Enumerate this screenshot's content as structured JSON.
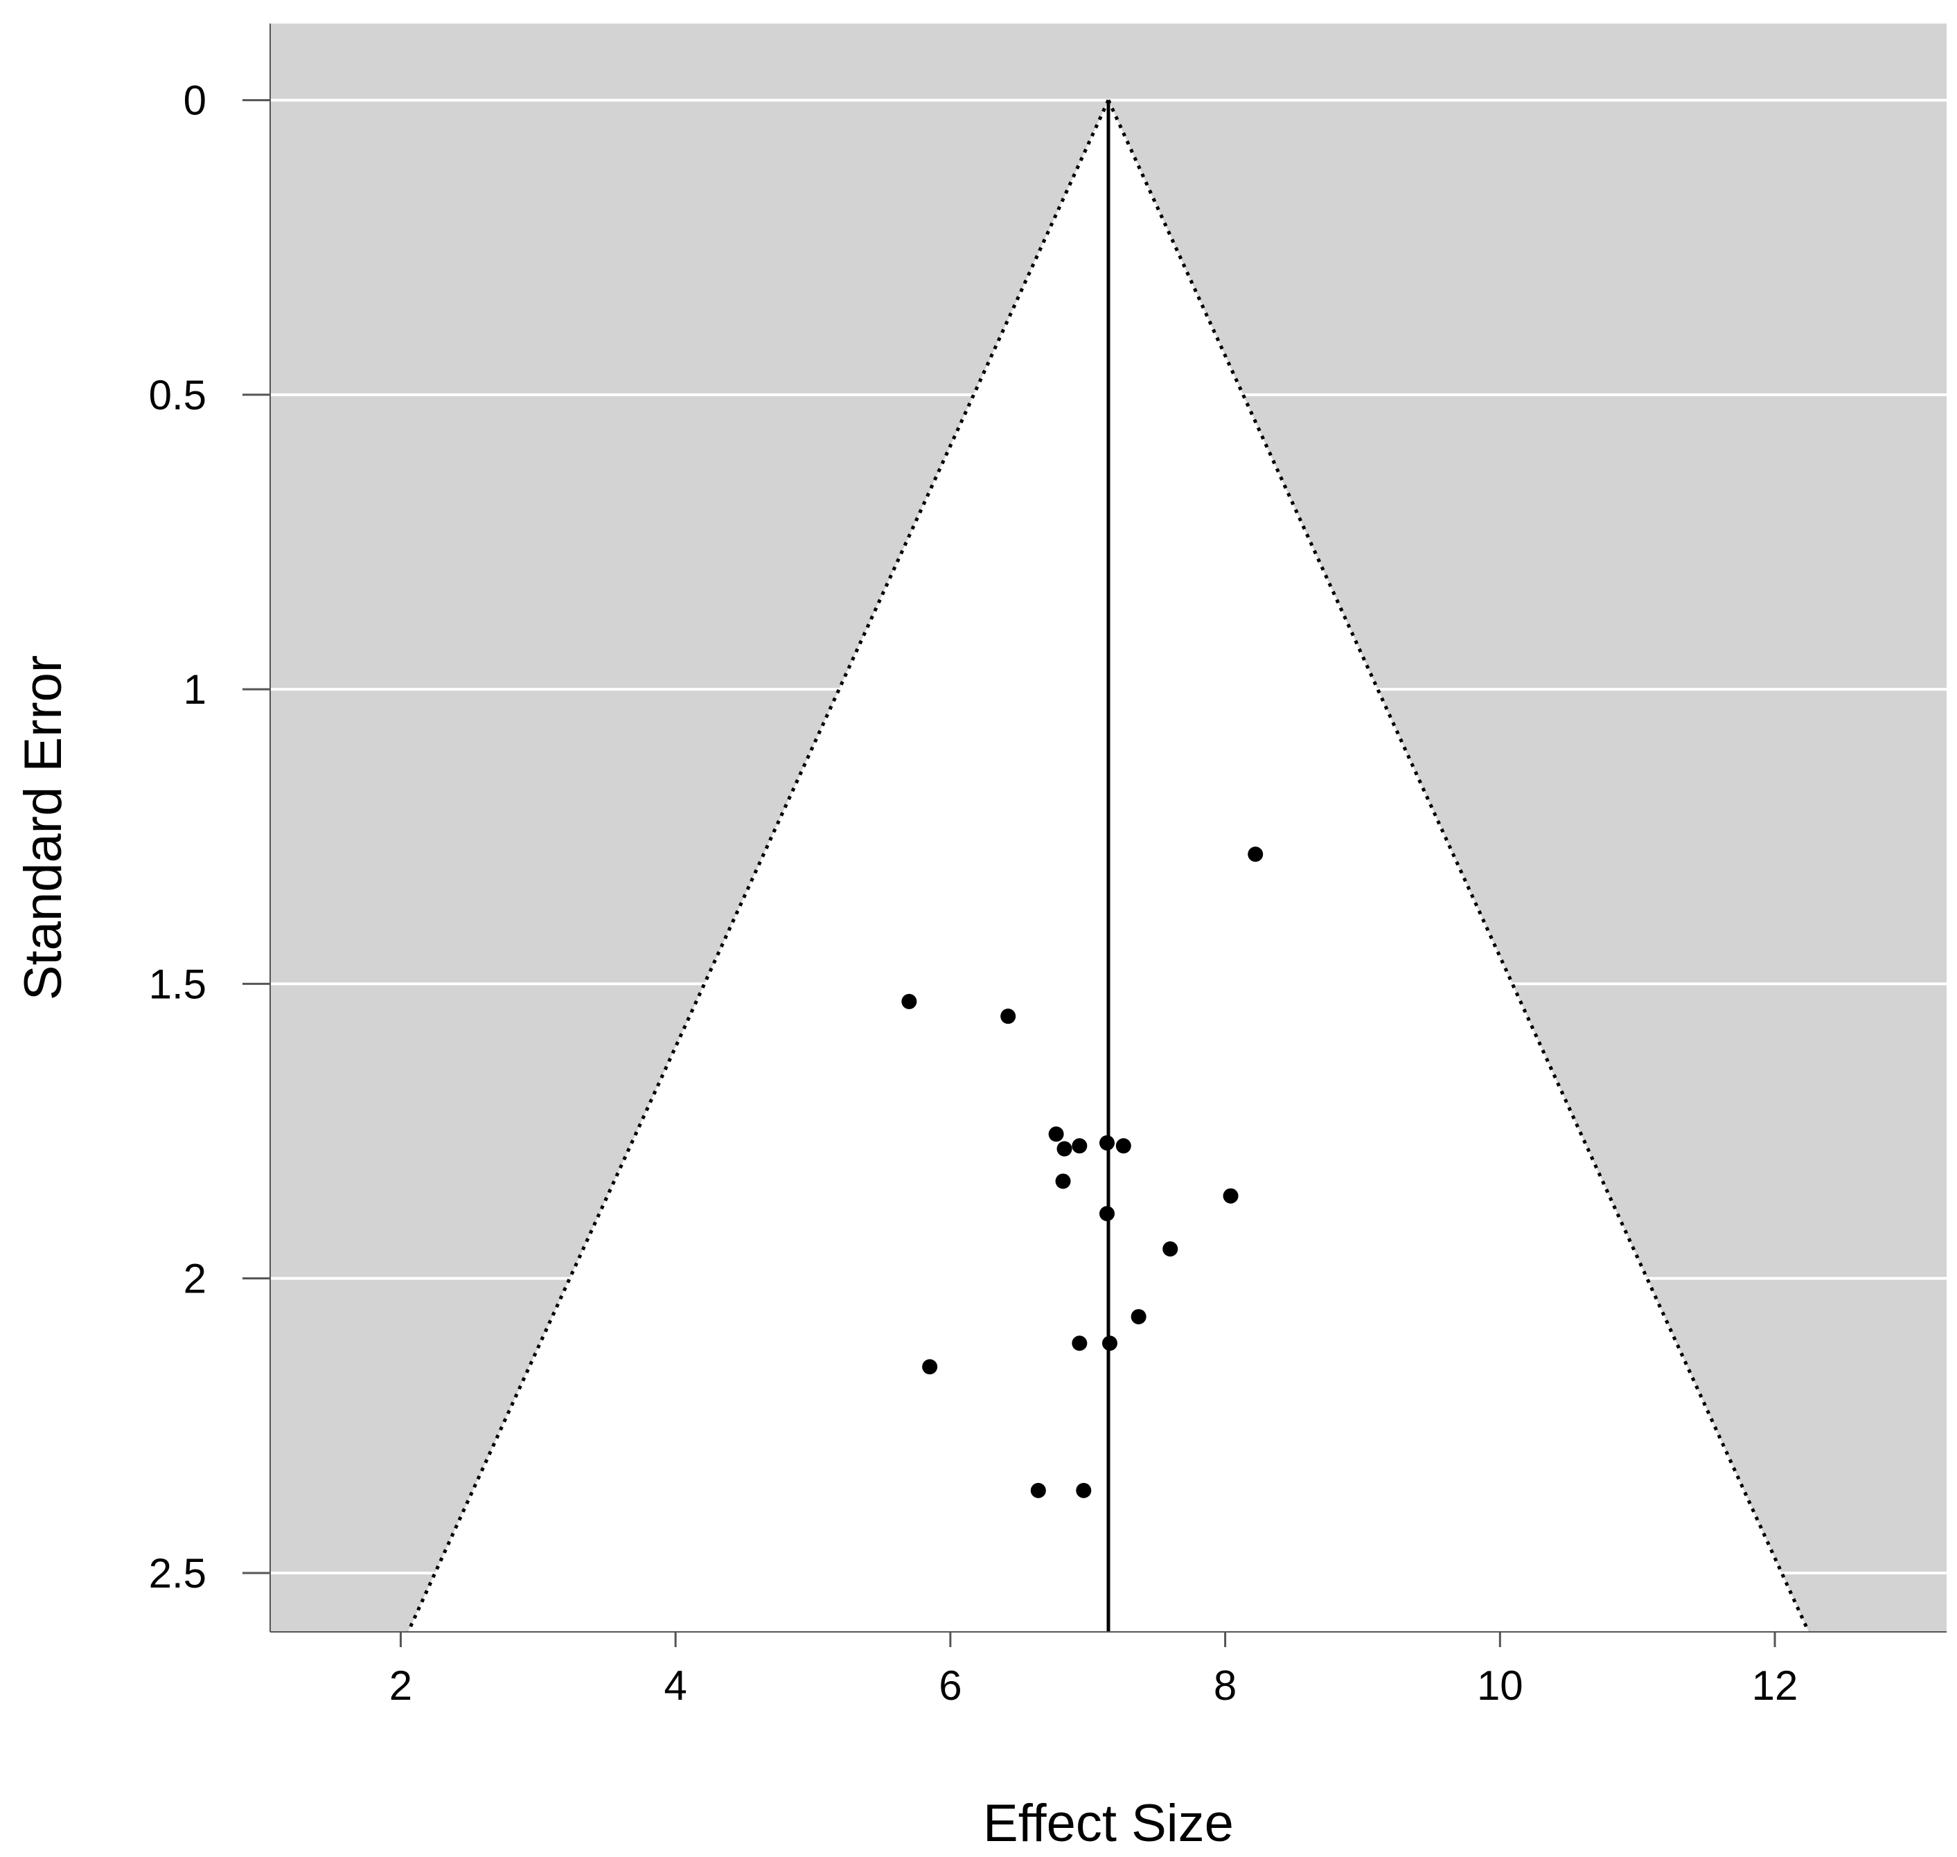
{
  "chart_data": {
    "type": "scatter",
    "subtype": "funnel-plot",
    "xlabel": "Effect Size",
    "ylabel": "Standard Error",
    "xlim": [
      1.05,
      13.25
    ],
    "ylim": [
      2.6,
      -0.13
    ],
    "y_reversed": true,
    "x_ticks": [
      2,
      4,
      6,
      8,
      10,
      12
    ],
    "y_ticks": [
      0,
      0.5,
      1,
      1.5,
      2,
      2.5
    ],
    "y_tick_labels": [
      "0",
      "0.5",
      "1",
      "1.5",
      "2",
      "2.5"
    ],
    "background_color": "#d3d3d3",
    "funnel_fill": "#ffffff",
    "grid": "horizontal white lines at y ticks",
    "center_line_x": 7.15,
    "funnel_z": 1.96,
    "points": [
      {
        "x": 8.22,
        "y": 1.28
      },
      {
        "x": 5.7,
        "y": 1.53
      },
      {
        "x": 6.42,
        "y": 1.555
      },
      {
        "x": 6.77,
        "y": 1.755
      },
      {
        "x": 6.83,
        "y": 1.78
      },
      {
        "x": 6.94,
        "y": 1.775
      },
      {
        "x": 7.14,
        "y": 1.77
      },
      {
        "x": 7.26,
        "y": 1.775
      },
      {
        "x": 6.82,
        "y": 1.835
      },
      {
        "x": 8.04,
        "y": 1.86
      },
      {
        "x": 7.14,
        "y": 1.89
      },
      {
        "x": 7.6,
        "y": 1.95
      },
      {
        "x": 7.37,
        "y": 2.065
      },
      {
        "x": 6.94,
        "y": 2.11
      },
      {
        "x": 7.16,
        "y": 2.11
      },
      {
        "x": 5.85,
        "y": 2.15
      },
      {
        "x": 6.64,
        "y": 2.36
      },
      {
        "x": 6.97,
        "y": 2.36
      }
    ]
  }
}
